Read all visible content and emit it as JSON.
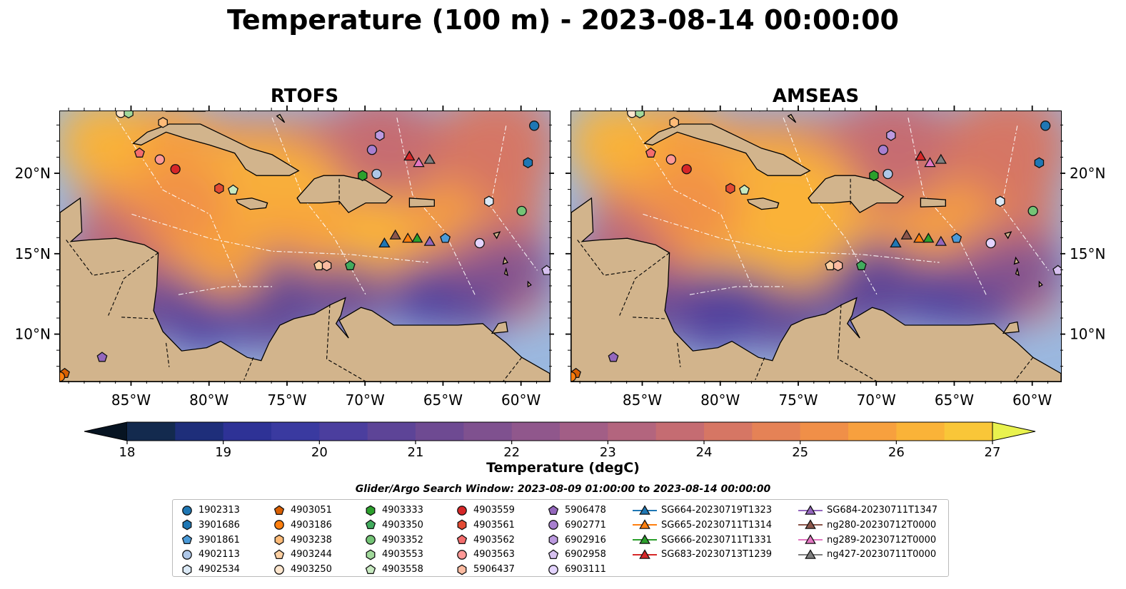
{
  "title": "Temperature (100 m) - 2023-08-14 00:00:00",
  "panels": [
    {
      "title": "RTOFS"
    },
    {
      "title": "AMSEAS"
    }
  ],
  "axes": {
    "x_ticks": [
      "85°W",
      "80°W",
      "75°W",
      "70°W",
      "65°W",
      "60°W"
    ],
    "x_tick_values": [
      -85,
      -80,
      -75,
      -70,
      -65,
      -60
    ],
    "y_ticks": [
      "20°N",
      "15°N",
      "10°N"
    ],
    "y_tick_values": [
      20,
      15,
      10
    ],
    "lon_range": [
      -89.6,
      -58.2
    ],
    "lat_range": [
      7.1,
      23.9
    ]
  },
  "colorbar": {
    "label": "Temperature (degC)",
    "ticks": [
      "18",
      "19",
      "20",
      "21",
      "22",
      "23",
      "24",
      "25",
      "26",
      "27"
    ],
    "range": [
      18,
      27
    ],
    "step": 0.5,
    "extend": "both",
    "colors": [
      "#0b1a2e",
      "#132a4e",
      "#1e2e7a",
      "#2e3296",
      "#3a3aa0",
      "#4b3e9e",
      "#5d4497",
      "#6e4a92",
      "#7f518f",
      "#90578c",
      "#a25e86",
      "#b3657e",
      "#c56c72",
      "#d67664",
      "#e58256",
      "#f08f48",
      "#f7a03e",
      "#fab338",
      "#f9c638",
      "#f2da3c",
      "#e9ec58"
    ],
    "extend_under_color": "#071422",
    "extend_over_color": "#e9f24e"
  },
  "map_colors": {
    "land": "#d2b48c",
    "ocean": "#9ab8e0",
    "coast": "#000000",
    "border": "#000000",
    "eez": "#ffffff",
    "river": "#9ab8e0"
  },
  "legend": {
    "title": "Glider/Argo Search Window: 2023-08-09 01:00:00 to 2023-08-14 00:00:00",
    "argo": [
      {
        "id": "1902313",
        "marker": "circle",
        "color": "#1f77b4",
        "lon": -59.2,
        "lat": 23.0
      },
      {
        "id": "3901686",
        "marker": "hexagon",
        "color": "#1f77b4",
        "lon": -59.6,
        "lat": 20.7
      },
      {
        "id": "3901861",
        "marker": "pentagon",
        "color": "#4a9ad8",
        "lon": -64.9,
        "lat": 16.0
      },
      {
        "id": "4902113",
        "marker": "circle",
        "color": "#aec7e8",
        "lon": -69.3,
        "lat": 20.0
      },
      {
        "id": "4902534",
        "marker": "hexagon",
        "color": "#dbe9f6",
        "lon": -62.1,
        "lat": 18.3
      },
      {
        "id": "4903051",
        "marker": "pentagon",
        "color": "#d95f02",
        "lon": -89.3,
        "lat": 7.6
      },
      {
        "id": "4903186",
        "marker": "circle",
        "color": "#ff7f0e",
        "lon": -89.6,
        "lat": 7.4
      },
      {
        "id": "4903238",
        "marker": "hexagon",
        "color": "#ffbb78",
        "lon": -83.0,
        "lat": 23.2
      },
      {
        "id": "4903244",
        "marker": "pentagon",
        "color": "#fdd0a2",
        "lon": -73.0,
        "lat": 14.3
      },
      {
        "id": "4903250",
        "marker": "circle",
        "color": "#fee6ce",
        "lon": -85.7,
        "lat": 23.8
      },
      {
        "id": "4903333",
        "marker": "hexagon",
        "color": "#2ca02c",
        "lon": -70.2,
        "lat": 19.9
      },
      {
        "id": "4903350",
        "marker": "pentagon",
        "color": "#41ab5d",
        "lon": -71.0,
        "lat": 14.3
      },
      {
        "id": "4903352",
        "marker": "circle",
        "color": "#74c476",
        "lon": -60.0,
        "lat": 17.7
      },
      {
        "id": "4903553",
        "marker": "hexagon",
        "color": "#a1d99b",
        "lon": -85.2,
        "lat": 23.8
      },
      {
        "id": "4903558",
        "marker": "pentagon",
        "color": "#c7e9c0",
        "lon": -78.5,
        "lat": 19.0
      },
      {
        "id": "4903559",
        "marker": "circle",
        "color": "#d62728",
        "lon": -82.2,
        "lat": 20.3
      },
      {
        "id": "4903561",
        "marker": "hexagon",
        "color": "#e34a33",
        "lon": -79.4,
        "lat": 19.1
      },
      {
        "id": "4903562",
        "marker": "pentagon",
        "color": "#f46d6d",
        "lon": -84.5,
        "lat": 21.3
      },
      {
        "id": "4903563",
        "marker": "circle",
        "color": "#ff9896",
        "lon": -83.2,
        "lat": 20.9
      },
      {
        "id": "5906437",
        "marker": "hexagon",
        "color": "#fcbba1",
        "lon": -72.5,
        "lat": 14.3
      },
      {
        "id": "5906478",
        "marker": "pentagon",
        "color": "#9467bd",
        "lon": -86.9,
        "lat": 8.6
      },
      {
        "id": "6902771",
        "marker": "circle",
        "color": "#a87fd0",
        "lon": -69.6,
        "lat": 21.5
      },
      {
        "id": "6902916",
        "marker": "hexagon",
        "color": "#bc9ae0",
        "lon": -69.1,
        "lat": 22.4
      },
      {
        "id": "6902958",
        "marker": "pentagon",
        "color": "#d7c1f0",
        "lon": -58.4,
        "lat": 14.0
      },
      {
        "id": "6903111",
        "marker": "circle",
        "color": "#e4d4ff",
        "lon": -62.7,
        "lat": 15.7
      }
    ],
    "gliders": [
      {
        "id": "SG664-20230719T1323",
        "color": "#1f77b4",
        "lon": -68.8,
        "lat": 15.7
      },
      {
        "id": "SG665-20230711T1314",
        "color": "#ff7f0e",
        "lon": -67.3,
        "lat": 16.0
      },
      {
        "id": "SG666-20230711T1331",
        "color": "#2ca02c",
        "lon": -66.7,
        "lat": 16.0
      },
      {
        "id": "SG683-20230713T1239",
        "color": "#d62728",
        "lon": -67.2,
        "lat": 21.1
      },
      {
        "id": "SG684-20230711T1347",
        "color": "#9467bd",
        "lon": -65.9,
        "lat": 15.8
      },
      {
        "id": "ng280-20230712T0000",
        "color": "#8c564b",
        "lon": -68.1,
        "lat": 16.2
      },
      {
        "id": "ng289-20230712T0000",
        "color": "#e377c2",
        "lon": -66.6,
        "lat": 20.7
      },
      {
        "id": "ng427-20230711T0000",
        "color": "#7f7f7f",
        "lon": -65.9,
        "lat": 20.9
      }
    ]
  }
}
